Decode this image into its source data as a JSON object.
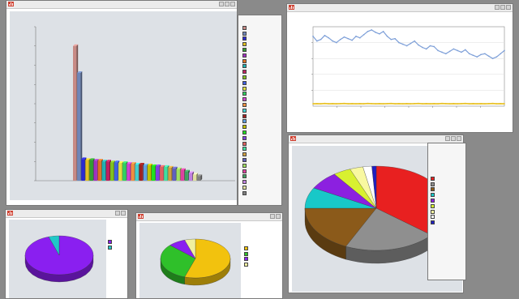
{
  "desktop": {
    "background": "#8a8a8a"
  },
  "windows": {
    "bar": {
      "title": "",
      "chart_title": "",
      "ylabel": "",
      "footer": "",
      "legend_count": 31
    },
    "line": {
      "title": "",
      "chart_title": "",
      "ylabel": "",
      "xlabel": ""
    },
    "pie_large": {
      "title": "",
      "chart_title": "",
      "footer": "",
      "legend_count": 9
    },
    "pie_small1": {
      "title": "",
      "chart_title": "",
      "footer": "",
      "legend_count": 2
    },
    "pie_small2": {
      "title": "",
      "chart_title": "",
      "legend_count": 4
    }
  },
  "chart_data": [
    {
      "type": "bar",
      "title": "",
      "xlabel": "",
      "ylabel": "",
      "ylim": [
        0,
        200
      ],
      "series": [
        {
          "values": [
            175,
            140,
            28,
            27,
            27,
            26,
            26,
            25,
            25,
            24,
            24,
            23,
            23,
            22,
            22,
            21,
            21,
            20,
            20,
            19,
            19,
            18,
            18,
            17,
            16,
            15,
            14,
            12,
            10,
            8,
            6
          ],
          "colors": [
            "#c88a85",
            "#6f86b8",
            "#2a2ad0",
            "#e0c020",
            "#30a030",
            "#a030c0",
            "#e07020",
            "#20b0b0",
            "#c02060",
            "#80c020",
            "#4060e0",
            "#e0e040",
            "#30d060",
            "#d040d0",
            "#f09040",
            "#40d0d0",
            "#a02020",
            "#60a0e0",
            "#c0c000",
            "#20e020",
            "#8040e0",
            "#e06060",
            "#40e0a0",
            "#d0a040",
            "#6060c0",
            "#a0e060",
            "#e040a0",
            "#40a060",
            "#c080e0",
            "#e0e0a0",
            "#808080"
          ]
        }
      ]
    },
    {
      "type": "line",
      "title": "",
      "xlabel": "",
      "ylabel": "",
      "ylim": [
        0,
        500
      ],
      "series": [
        {
          "color": "#7d9fd8",
          "values": [
            440,
            410,
            420,
            445,
            430,
            410,
            400,
            420,
            435,
            425,
            415,
            440,
            430,
            450,
            470,
            480,
            465,
            455,
            470,
            440,
            420,
            425,
            400,
            390,
            380,
            395,
            410,
            385,
            370,
            360,
            380,
            375,
            350,
            340,
            330,
            345,
            360,
            350,
            340,
            355,
            330,
            320,
            310,
            325,
            330,
            315,
            300,
            310,
            330,
            350
          ]
        },
        {
          "color": "#e8c020",
          "values": [
            15,
            16,
            15,
            17,
            15,
            16,
            15,
            16,
            17,
            15,
            16,
            15,
            16,
            15,
            17,
            16,
            15,
            16,
            15,
            16,
            17,
            15,
            16,
            15,
            16,
            15,
            16,
            17,
            15,
            16,
            15,
            16,
            15,
            17,
            16,
            15,
            16,
            15,
            16,
            17,
            15,
            16,
            15,
            16,
            15,
            16,
            17,
            15,
            16,
            15
          ]
        }
      ]
    },
    {
      "type": "pie",
      "title": "",
      "slices": [
        {
          "value": 36,
          "color": "#e82020"
        },
        {
          "value": 21,
          "color": "#8f8f8f"
        },
        {
          "value": 18,
          "color": "#8b5a1a"
        },
        {
          "value": 8,
          "color": "#18c8c8"
        },
        {
          "value": 7,
          "color": "#8c20e0"
        },
        {
          "value": 4,
          "color": "#d8f030"
        },
        {
          "value": 3,
          "color": "#f8f8a0"
        },
        {
          "value": 2,
          "color": "#ffffff"
        },
        {
          "value": 1,
          "color": "#2020c0"
        }
      ]
    },
    {
      "type": "pie",
      "title": "",
      "slices": [
        {
          "value": 95,
          "color": "#8a1ff0"
        },
        {
          "value": 5,
          "color": "#20c8c8"
        }
      ]
    },
    {
      "type": "pie",
      "title": "",
      "slices": [
        {
          "value": 55,
          "color": "#f2c20e"
        },
        {
          "value": 32,
          "color": "#2fc02a"
        },
        {
          "value": 8,
          "color": "#8a1ff0"
        },
        {
          "value": 5,
          "color": "#f0f0a0"
        }
      ]
    }
  ]
}
